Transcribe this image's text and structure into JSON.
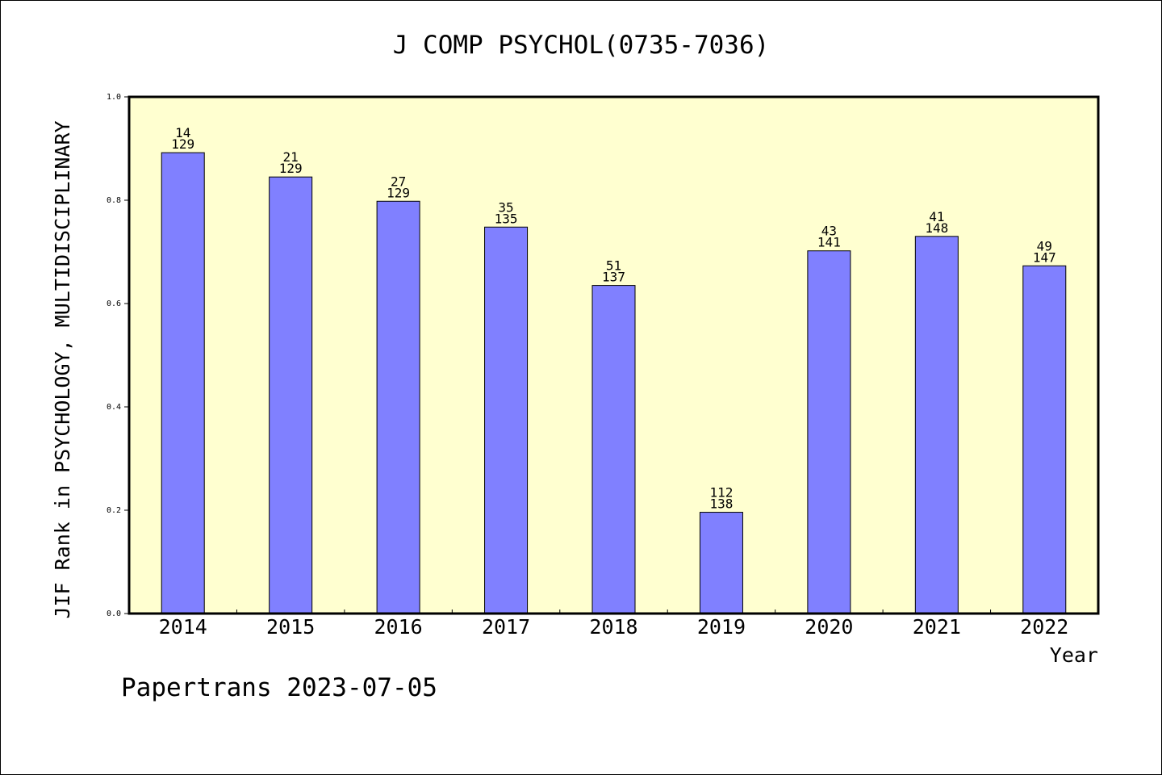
{
  "footer_text": "Papertrans 2023-07-05",
  "colors": {
    "plot_background": "#ffffd0",
    "bar_fill": "#8080ff",
    "bar_stroke": "#000000"
  },
  "chart_data": {
    "type": "bar",
    "title": "J COMP PSYCHOL(0735-7036)",
    "xlabel": "Year",
    "ylabel": "JIF Rank in PSYCHOLOGY, MULTIDISCIPLINARY",
    "ylim": [
      0,
      1.0
    ],
    "yticks": [
      "0.0",
      "0.2",
      "0.4",
      "0.6",
      "0.8",
      "1.0"
    ],
    "grid": false,
    "categories": [
      "2014",
      "2015",
      "2016",
      "2017",
      "2018",
      "2019",
      "2020",
      "2021",
      "2022"
    ],
    "values": [
      0.892,
      0.845,
      0.798,
      0.748,
      0.635,
      0.196,
      0.702,
      0.73,
      0.673
    ],
    "ranks": [
      "14",
      "21",
      "27",
      "35",
      "51",
      "112",
      "43",
      "41",
      "49"
    ],
    "totals": [
      "129",
      "129",
      "129",
      "135",
      "137",
      "138",
      "141",
      "148",
      "147"
    ]
  }
}
